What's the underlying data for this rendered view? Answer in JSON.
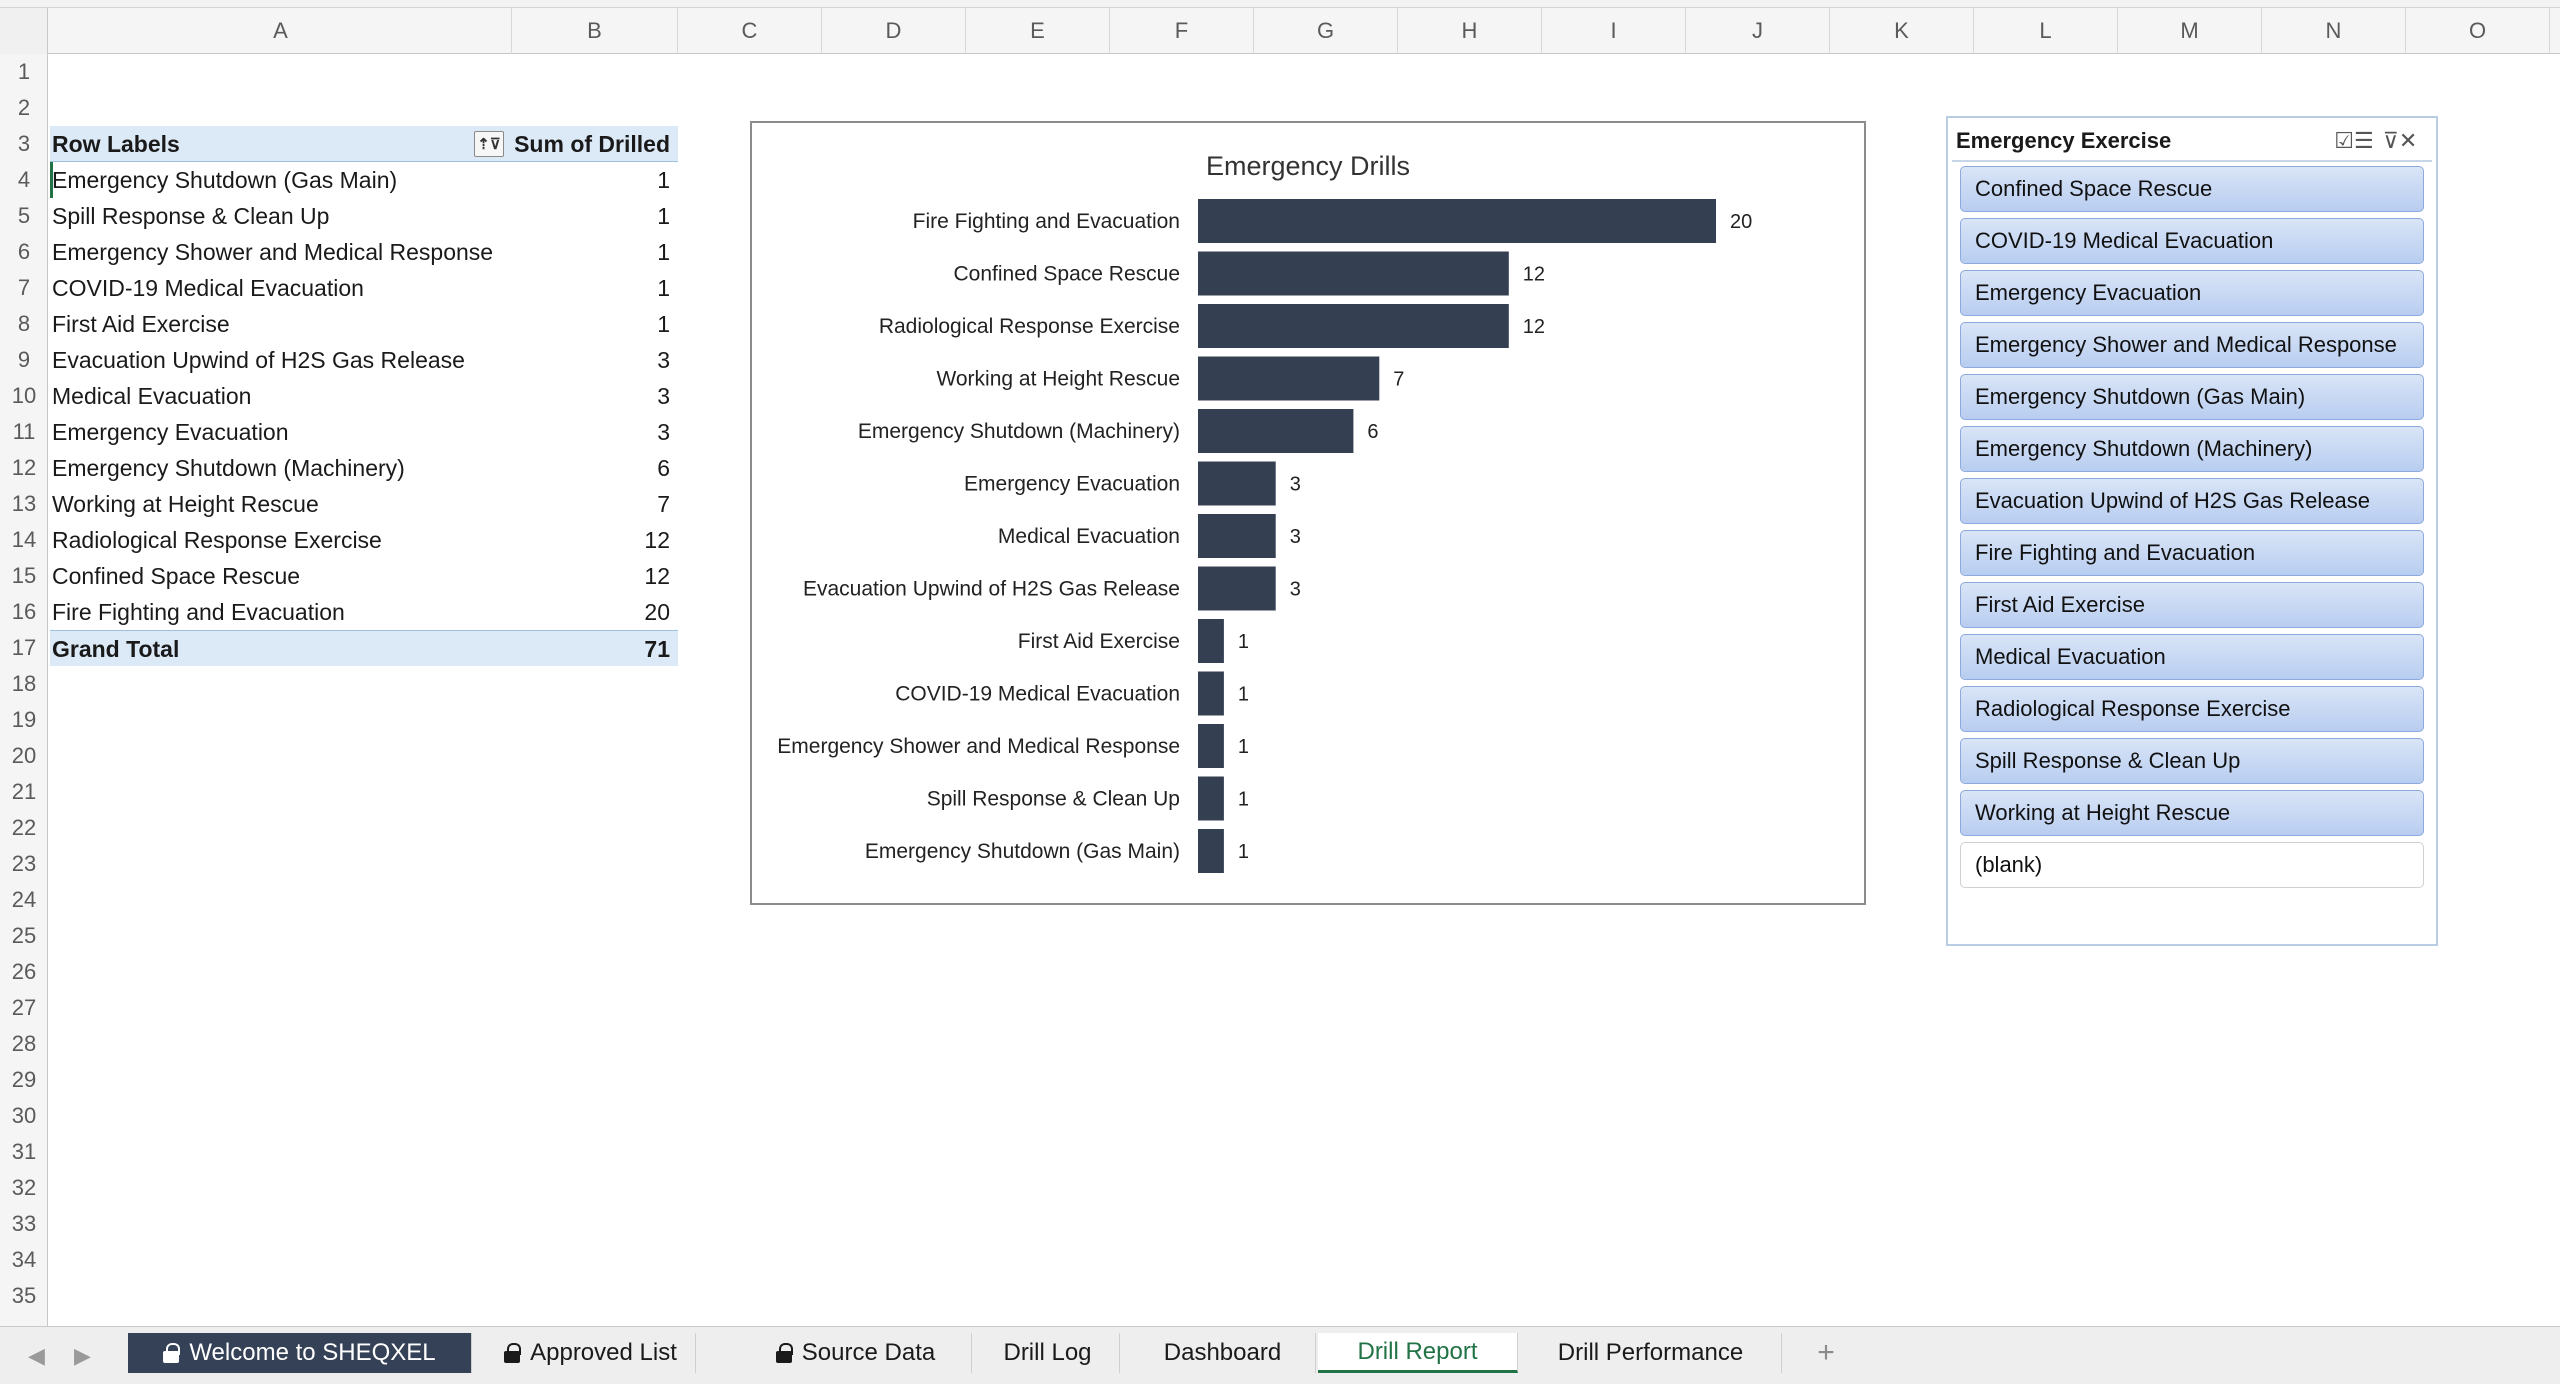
{
  "columns": [
    "A",
    "B",
    "C",
    "D",
    "E",
    "F",
    "G",
    "H",
    "I",
    "J",
    "K",
    "L",
    "M",
    "N",
    "O"
  ],
  "rows": [
    "1",
    "2",
    "3",
    "4",
    "5",
    "6",
    "7",
    "8",
    "9",
    "10",
    "11",
    "12",
    "13",
    "14",
    "15",
    "16",
    "17",
    "18",
    "19",
    "20",
    "21",
    "22",
    "23",
    "24",
    "25",
    "26",
    "27",
    "28",
    "29",
    "30",
    "31",
    "32",
    "33",
    "34",
    "35"
  ],
  "pivot": {
    "header_label": "Row Labels",
    "header_value": "Sum of Drilled",
    "rows": [
      {
        "label": "Emergency Shutdown (Gas Main)",
        "value": "1"
      },
      {
        "label": "Spill Response & Clean Up",
        "value": "1"
      },
      {
        "label": "Emergency Shower and Medical Response",
        "value": "1"
      },
      {
        "label": "COVID-19 Medical Evacuation",
        "value": "1"
      },
      {
        "label": "First Aid Exercise",
        "value": "1"
      },
      {
        "label": "Evacuation Upwind of H2S Gas Release",
        "value": "3"
      },
      {
        "label": "Medical Evacuation",
        "value": "3"
      },
      {
        "label": "Emergency Evacuation",
        "value": "3"
      },
      {
        "label": "Emergency Shutdown (Machinery)",
        "value": "6"
      },
      {
        "label": "Working at Height Rescue",
        "value": "7"
      },
      {
        "label": "Radiological Response Exercise",
        "value": "12"
      },
      {
        "label": "Confined Space Rescue",
        "value": "12"
      },
      {
        "label": "Fire Fighting and Evacuation",
        "value": "20"
      }
    ],
    "total_label": "Grand Total",
    "total_value": "71"
  },
  "chart_data": {
    "type": "bar",
    "orientation": "horizontal",
    "title": "Emergency Drills",
    "categories": [
      "Fire Fighting and Evacuation",
      "Confined Space Rescue",
      "Radiological Response Exercise",
      "Working at Height Rescue",
      "Emergency Shutdown (Machinery)",
      "Emergency Evacuation",
      "Medical Evacuation",
      "Evacuation Upwind of H2S Gas Release",
      "First Aid Exercise",
      "COVID-19 Medical Evacuation",
      "Emergency Shower and Medical Response",
      "Spill Response & Clean Up",
      "Emergency Shutdown (Gas Main)"
    ],
    "values": [
      20,
      12,
      12,
      7,
      6,
      3,
      3,
      3,
      1,
      1,
      1,
      1,
      1
    ],
    "xlim": [
      0,
      20
    ],
    "bar_color": "#343f52",
    "grid": false,
    "legend": "none",
    "data_labels": true
  },
  "slicer": {
    "title": "Emergency Exercise",
    "icons": [
      "multi-select-icon",
      "clear-filter-icon"
    ],
    "items": [
      "Confined Space Rescue",
      "COVID-19 Medical Evacuation",
      "Emergency Evacuation",
      "Emergency Shower and Medical Response",
      "Emergency Shutdown (Gas Main)",
      "Emergency Shutdown (Machinery)",
      "Evacuation Upwind of H2S Gas Release",
      "Fire Fighting and Evacuation",
      "First Aid Exercise",
      "Medical Evacuation",
      "Radiological Response Exercise",
      "Spill Response & Clean Up",
      "Working at Height Rescue"
    ],
    "blank_item": "(blank)"
  },
  "tabs": [
    {
      "label": "Welcome to SHEQXEL",
      "locked": true,
      "state": "dark"
    },
    {
      "label": "Approved List",
      "locked": true,
      "state": "normal"
    },
    {
      "label": "Source Data",
      "locked": true,
      "state": "normal"
    },
    {
      "label": "Drill Log",
      "locked": false,
      "state": "normal"
    },
    {
      "label": "Dashboard",
      "locked": false,
      "state": "normal"
    },
    {
      "label": "Drill Report",
      "locked": false,
      "state": "active"
    },
    {
      "label": "Drill Performance",
      "locked": false,
      "state": "normal"
    }
  ],
  "add_tab": "+",
  "colors": {
    "accent_green": "#217346",
    "pivot_header": "#dce9f6",
    "slicer_item": "#c5d6f2",
    "dark_tab": "#344156"
  }
}
